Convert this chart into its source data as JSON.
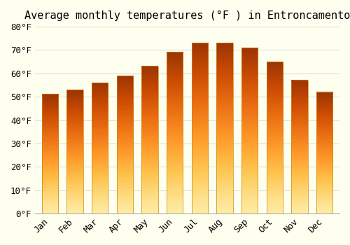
{
  "title": "Average monthly temperatures (°F ) in Entroncamento",
  "months": [
    "Jan",
    "Feb",
    "Mar",
    "Apr",
    "May",
    "Jun",
    "Jul",
    "Aug",
    "Sep",
    "Oct",
    "Nov",
    "Dec"
  ],
  "values": [
    51,
    53,
    56,
    59,
    63,
    69,
    73,
    73,
    71,
    65,
    57,
    52
  ],
  "bar_color_top": "#FFA500",
  "bar_color_bottom": "#FFD060",
  "ylim": [
    0,
    80
  ],
  "yticks": [
    0,
    10,
    20,
    30,
    40,
    50,
    60,
    70,
    80
  ],
  "ytick_labels": [
    "0°F",
    "10°F",
    "20°F",
    "30°F",
    "40°F",
    "50°F",
    "60°F",
    "70°F",
    "80°F"
  ],
  "background_color": "#FFFFF0",
  "grid_color": "#DDDDDD",
  "title_fontsize": 11,
  "tick_fontsize": 9,
  "bar_edge_color": "#E09000"
}
